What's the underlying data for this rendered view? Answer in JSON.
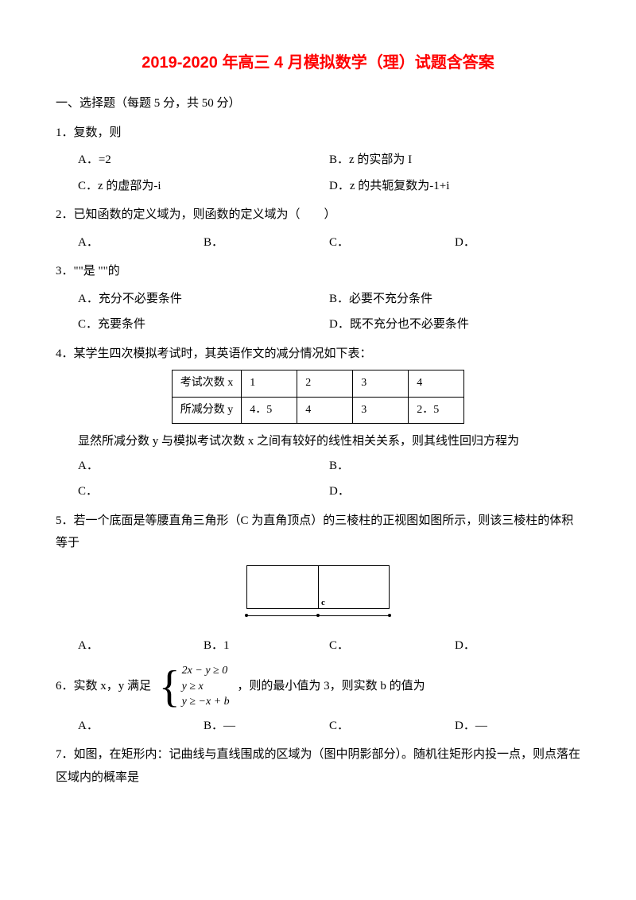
{
  "title": "2019-2020 年高三 4 月模拟数学（理）试题含答案",
  "title_color": "#ff0000",
  "section1": "一、选择题（每题 5 分，共 50 分）",
  "q1": {
    "text": "1．复数，则",
    "a": "A．=2",
    "b": "B．z 的实部为 I",
    "c": "C．z 的虚部为-i",
    "d": "D．z 的共轭复数为-1+i"
  },
  "q2": {
    "text": "2．已知函数的定义域为，则函数的定义域为（　　）",
    "a": "A．",
    "b": "B．",
    "c": "C．",
    "d": "D．"
  },
  "q3": {
    "text": "3．\"\"是 \"\"的",
    "a": "A．充分不必要条件",
    "b": "B．必要不充分条件",
    "c": "C．充要条件",
    "d": "D．既不充分也不必要条件"
  },
  "q4": {
    "text": "4．某学生四次模拟考试时，其英语作文的减分情况如下表：",
    "table_headers": [
      "考试次数 x",
      "1",
      "2",
      "3",
      "4"
    ],
    "table_row": [
      "所减分数 y",
      "4．5",
      "4",
      "3",
      "2．5"
    ],
    "after": "显然所减分数 y 与模拟考试次数 x 之间有较好的线性相关关系，则其线性回归方程为",
    "a": "A．",
    "b": "B．",
    "c": "C．",
    "d": "D．"
  },
  "q5": {
    "text": "5．若一个底面是等腰直角三角形（C 为直角顶点）的三棱柱的正视图如图所示，则该三棱柱的体积等于",
    "c_label": "c",
    "a": "A．",
    "b": "B．1",
    "c": "C．",
    "d": "D．"
  },
  "q6": {
    "pre": "6．实数 x，y 满足",
    "eq1": "2x − y ≥ 0",
    "eq2": "y ≥ x",
    "eq3": "y ≥ −x + b",
    "post": "，则的最小值为 3，则实数 b 的值为",
    "a": "A．",
    "b": "B．—",
    "c": "C．",
    "d": "D．—"
  },
  "q7": {
    "text": "7．如图，在矩形内：记曲线与直线围成的区域为（图中阴影部分）。随机往矩形内投一点，则点落在区域内的概率是"
  },
  "colors": {
    "text": "#000000",
    "bg": "#ffffff",
    "border": "#000000"
  }
}
